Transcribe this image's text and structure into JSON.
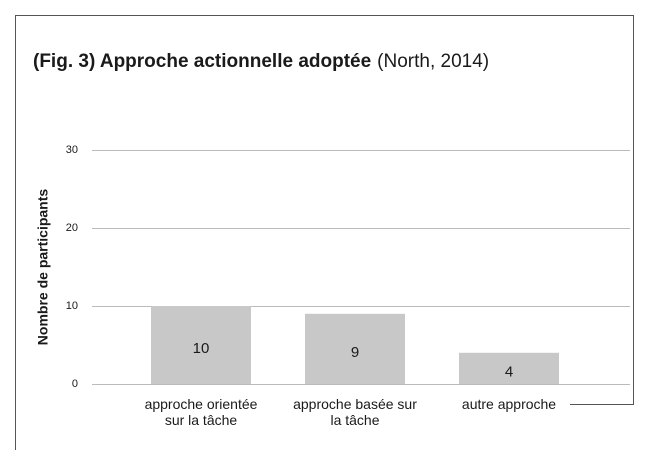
{
  "chart_data": {
    "type": "bar",
    "title": "(Fig. 3) Approche actionnelle adoptée",
    "title_note": "(North, 2014)",
    "y_label": "Nombre de participants",
    "categories": [
      "approche orientée sur la tâche",
      "approche basée sur la tâche",
      "autre approche"
    ],
    "values": [
      10,
      9,
      4
    ],
    "color": "#c8c8c8",
    "ylim": [
      0,
      30
    ],
    "yticks": [
      0,
      10,
      20,
      30
    ],
    "grid": true
  }
}
